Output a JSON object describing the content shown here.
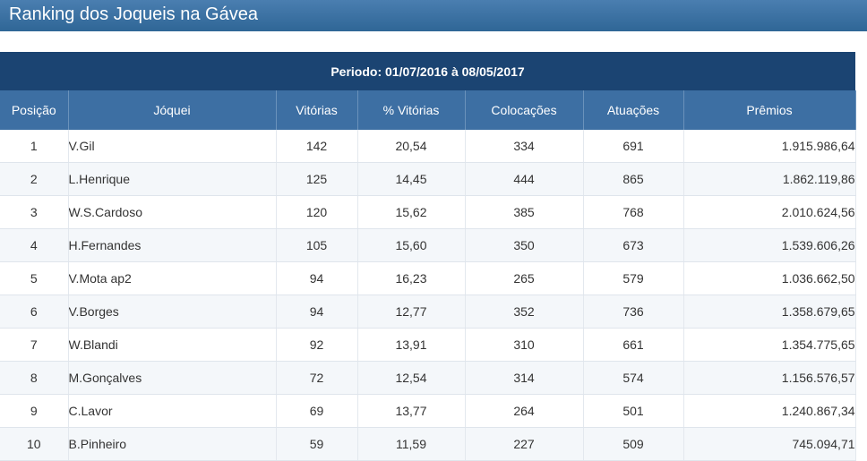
{
  "header": {
    "title": "Ranking dos Joqueis na Gávea"
  },
  "table": {
    "period": "Periodo: 01/07/2016 à 08/05/2017",
    "columns": [
      "Posição",
      "Jóquei",
      "Vitórias",
      "% Vitórias",
      "Colocações",
      "Atuações",
      "Prêmios"
    ],
    "rows": [
      [
        "1",
        "V.Gil",
        "142",
        "20,54",
        "334",
        "691",
        "1.915.986,64"
      ],
      [
        "2",
        "L.Henrique",
        "125",
        "14,45",
        "444",
        "865",
        "1.862.119,86"
      ],
      [
        "3",
        "W.S.Cardoso",
        "120",
        "15,62",
        "385",
        "768",
        "2.010.624,56"
      ],
      [
        "4",
        "H.Fernandes",
        "105",
        "15,60",
        "350",
        "673",
        "1.539.606,26"
      ],
      [
        "5",
        "V.Mota ap2",
        "94",
        "16,23",
        "265",
        "579",
        "1.036.662,50"
      ],
      [
        "6",
        "V.Borges",
        "94",
        "12,77",
        "352",
        "736",
        "1.358.679,65"
      ],
      [
        "7",
        "W.Blandi",
        "92",
        "13,91",
        "310",
        "661",
        "1.354.775,65"
      ],
      [
        "8",
        "M.Gonçalves",
        "72",
        "12,54",
        "314",
        "574",
        "1.156.576,57"
      ],
      [
        "9",
        "C.Lavor",
        "69",
        "13,77",
        "264",
        "501",
        "1.240.867,34"
      ],
      [
        "10",
        "B.Pinheiro",
        "59",
        "11,59",
        "227",
        "509",
        "745.094,71"
      ]
    ]
  }
}
